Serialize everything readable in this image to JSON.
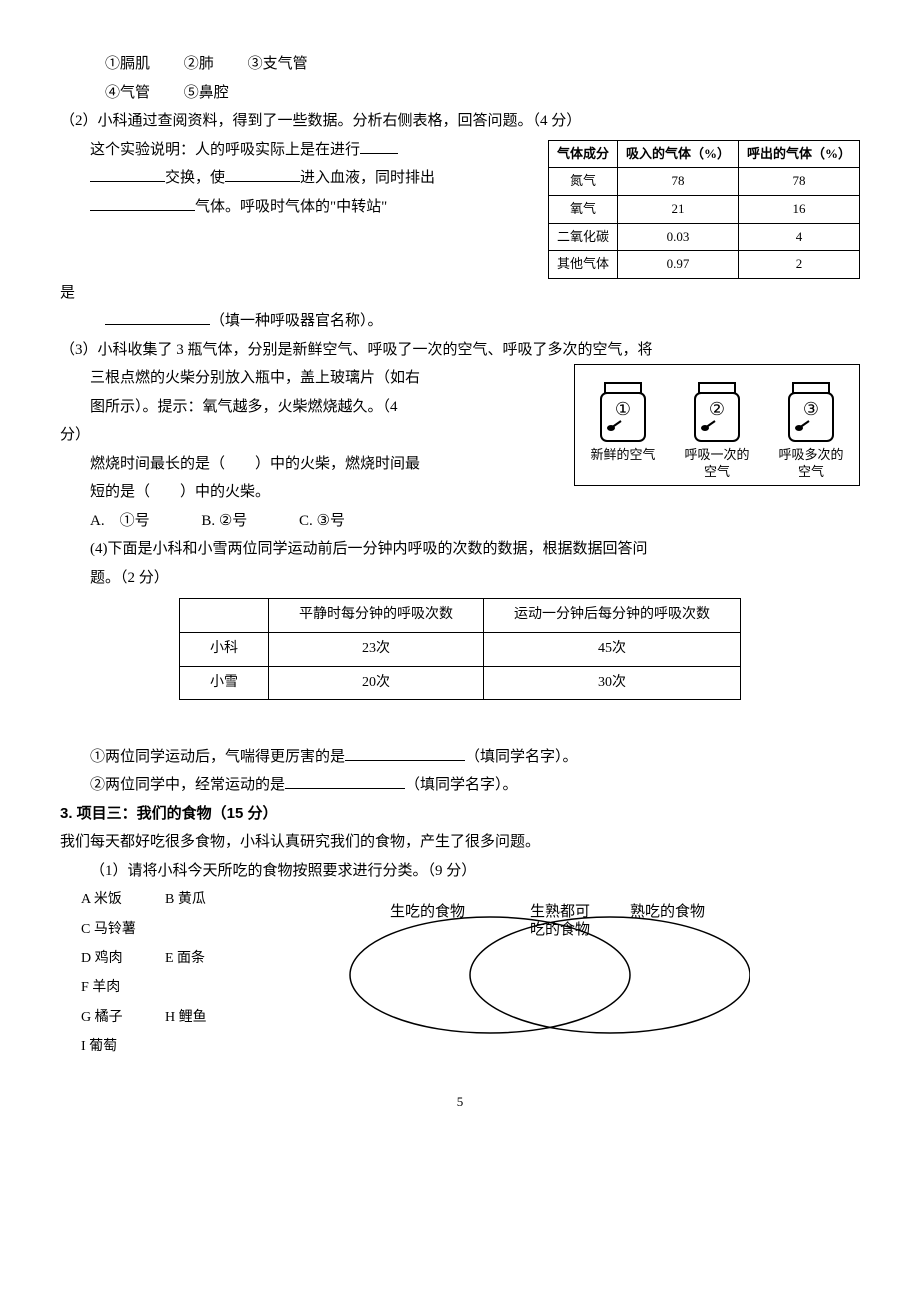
{
  "q1": {
    "items": [
      "①膈肌",
      "②肺",
      "③支气管",
      "④气管",
      "⑤鼻腔"
    ]
  },
  "q2": {
    "prompt": "（2）小科通过查阅资料，得到了一些数据。分析右侧表格，回答问题。（4 分）",
    "text_a": "这个实验说明：人的呼吸实际上是在进行",
    "text_b": "交换，使",
    "text_c": "进入血液，同时排出",
    "text_d": "气体。呼吸时气体的\"中转站\"",
    "text_e": "是",
    "text_f": "（填一种呼吸器官名称）。",
    "table": {
      "headers": [
        "气体成分",
        "吸入的气体（%）",
        "呼出的气体（%）"
      ],
      "rows": [
        [
          "氮气",
          "78",
          "78"
        ],
        [
          "氧气",
          "21",
          "16"
        ],
        [
          "二氧化碳",
          "0.03",
          "4"
        ],
        [
          "其他气体",
          "0.97",
          "2"
        ]
      ],
      "header_fontsize": 13,
      "border_color": "#000000"
    }
  },
  "q3": {
    "prompt": "（3）小科收集了 3 瓶气体，分别是新鲜空气、呼吸了一次的空气、呼吸了多次的空气，将",
    "line1": "三根点燃的火柴分别放入瓶中，盖上玻璃片（如右",
    "line2": "图所示）。提示：氧气越多，火柴燃烧越久。（4",
    "line3": "分）",
    "line4": "燃烧时间最长的是（　　）中的火柴，燃烧时间最",
    "line5": "短的是（　　）中的火柴。",
    "opts": [
      "A.　①号",
      "B. ②号",
      "C. ③号"
    ],
    "bottles": {
      "nums": [
        "①",
        "②",
        "③"
      ],
      "labels": [
        "新鲜的空气",
        "呼吸一次的\n空气",
        "呼吸多次的\n空气"
      ],
      "stroke": "#000000"
    }
  },
  "q4": {
    "prompt": "(4)下面是小科和小雪两位同学运动前后一分钟内呼吸的次数的数据，根据数据回答问",
    "prompt2": "题。（2 分）",
    "table": {
      "headers": [
        "",
        "平静时每分钟的呼吸次数",
        "运动一分钟后每分钟的呼吸次数"
      ],
      "rows": [
        [
          "小科",
          "23次",
          "45次"
        ],
        [
          "小雪",
          "20次",
          "30次"
        ]
      ]
    },
    "sub1_a": "①两位同学运动后，气喘得更厉害的是",
    "sub1_b": "（填同学名字）。",
    "sub2_a": "②两位同学中，经常运动的是",
    "sub2_b": "（填同学名字）。"
  },
  "p3": {
    "title": "3. 项目三：我们的食物（15 分）",
    "intro": "我们每天都好吃很多食物，小科认真研究我们的食物，产生了很多问题。",
    "q1": "（1）请将小科今天所吃的食物按照要求进行分类。（9 分）",
    "foods": [
      [
        "A 米饭",
        "B 黄瓜",
        "C 马铃薯"
      ],
      [
        "D 鸡肉",
        "E 面条",
        "F 羊肉"
      ],
      [
        "G 橘子",
        "H 鲤鱼",
        "I 葡萄"
      ]
    ],
    "venn": {
      "left": "生吃的食物",
      "mid": "生熟都可\n吃的食物",
      "right": "熟吃的食物",
      "stroke": "#000000",
      "stroke_width": 1.5
    }
  },
  "page_num": "5"
}
